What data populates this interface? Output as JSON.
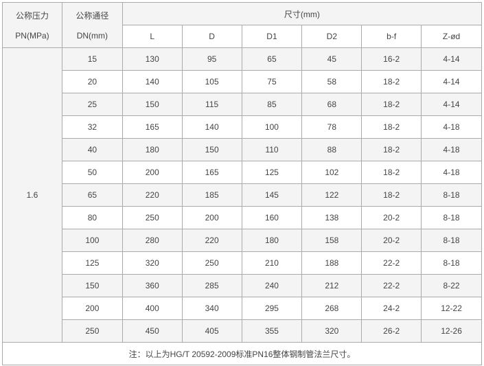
{
  "header": {
    "pressure_label": "公称压力",
    "pressure_unit": "PN(MPa)",
    "diameter_label": "公称通径",
    "diameter_unit": "DN(mm)",
    "dimensions_label": "尺寸(mm)",
    "columns": [
      "L",
      "D",
      "D1",
      "D2",
      "b-f",
      "Z-ød"
    ]
  },
  "pressure_value": "1.6",
  "rows": [
    [
      "15",
      "130",
      "95",
      "65",
      "45",
      "16-2",
      "4-14"
    ],
    [
      "20",
      "140",
      "105",
      "75",
      "58",
      "18-2",
      "4-14"
    ],
    [
      "25",
      "150",
      "115",
      "85",
      "68",
      "18-2",
      "4-14"
    ],
    [
      "32",
      "165",
      "140",
      "100",
      "78",
      "18-2",
      "4-18"
    ],
    [
      "40",
      "180",
      "150",
      "110",
      "88",
      "18-2",
      "4-18"
    ],
    [
      "50",
      "200",
      "165",
      "125",
      "102",
      "18-2",
      "4-18"
    ],
    [
      "65",
      "220",
      "185",
      "145",
      "122",
      "18-2",
      "8-18"
    ],
    [
      "80",
      "250",
      "200",
      "160",
      "138",
      "20-2",
      "8-18"
    ],
    [
      "100",
      "280",
      "220",
      "180",
      "158",
      "20-2",
      "8-18"
    ],
    [
      "125",
      "320",
      "250",
      "210",
      "188",
      "22-2",
      "8-18"
    ],
    [
      "150",
      "360",
      "285",
      "240",
      "212",
      "22-2",
      "8-22"
    ],
    [
      "200",
      "400",
      "340",
      "295",
      "268",
      "24-2",
      "12-22"
    ],
    [
      "250",
      "450",
      "405",
      "355",
      "320",
      "26-2",
      "12-26"
    ]
  ],
  "note": "注：以上为HG/T 20592-2009标准PN16整体钢制管法兰尺寸。",
  "colors": {
    "stripe": "#f4f4f4",
    "border": "#aaaaaa",
    "text": "#444444"
  }
}
